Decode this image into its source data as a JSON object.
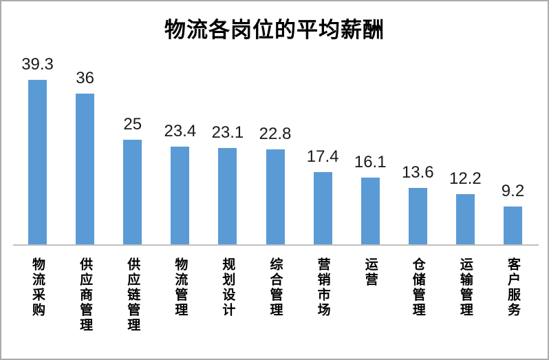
{
  "chart_data": {
    "type": "bar",
    "title": "物流各岗位的平均薪酬",
    "categories": [
      "物流采购",
      "供应商管理",
      "供应链管理",
      "物流管理",
      "规划设计",
      "综合管理",
      "营销市场",
      "运营",
      "仓储管理",
      "运输管理",
      "客户服务"
    ],
    "values": [
      39.3,
      36,
      25,
      23.4,
      23.1,
      22.8,
      17.4,
      16.1,
      13.6,
      12.2,
      9.2
    ],
    "value_labels": [
      "39.3",
      "36",
      "25",
      "23.4",
      "23.1",
      "22.8",
      "17.4",
      "16.1",
      "13.6",
      "12.2",
      "9.2"
    ],
    "xlabel": "",
    "ylabel": "",
    "ylim": [
      0,
      42
    ],
    "grid": false,
    "legend": false,
    "bar_color": "#5b9bd5",
    "axis_line_color": "#bfbfbf",
    "value_label_color": "#1a1a1a",
    "category_label_color": "#000000",
    "category_text_orientation": "vertical-upright",
    "pixels_per_unit": 6.1
  }
}
